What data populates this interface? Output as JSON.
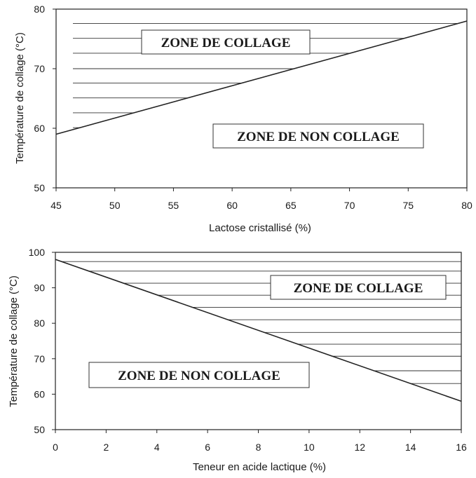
{
  "chart_data": [
    {
      "type": "line",
      "xlabel": "Lactose cristallisé (%)",
      "ylabel": "Température de collage (°C)",
      "xlim": [
        45,
        80
      ],
      "ylim": [
        50,
        80
      ],
      "xticks": [
        "45",
        "50",
        "55",
        "60",
        "65",
        "70",
        "75",
        "80"
      ],
      "yticks": [
        "50",
        "60",
        "70",
        "80"
      ],
      "x": [
        45,
        80
      ],
      "y": [
        59,
        78
      ],
      "hatch_side": "above",
      "hatch_levels": [
        60.1,
        62.6,
        65.1,
        67.6,
        70.0,
        72.6,
        75.1,
        77.6
      ],
      "zone_labels": {
        "above": "ZONE DE COLLAGE",
        "below": "ZONE DE NON COLLAGE"
      },
      "grid": false
    },
    {
      "type": "line",
      "xlabel": "Teneur en acide lactique (%)",
      "ylabel": "Température de collage (°C)",
      "xlim": [
        0,
        16
      ],
      "ylim": [
        50,
        100
      ],
      "xticks": [
        "0",
        "2",
        "4",
        "6",
        "8",
        "10",
        "12",
        "14",
        "16"
      ],
      "yticks": [
        "50",
        "60",
        "70",
        "80",
        "90",
        "100"
      ],
      "x": [
        0,
        16
      ],
      "y": [
        98,
        58
      ],
      "hatch_side": "above",
      "hatch_levels": [
        63.0,
        66.6,
        70.7,
        74.1,
        77.4,
        81.0,
        84.5,
        87.9,
        91.3,
        94.7,
        97.4
      ],
      "zone_labels": {
        "above": "ZONE DE COLLAGE",
        "below": "ZONE DE NON COLLAGE"
      },
      "grid": false
    }
  ]
}
